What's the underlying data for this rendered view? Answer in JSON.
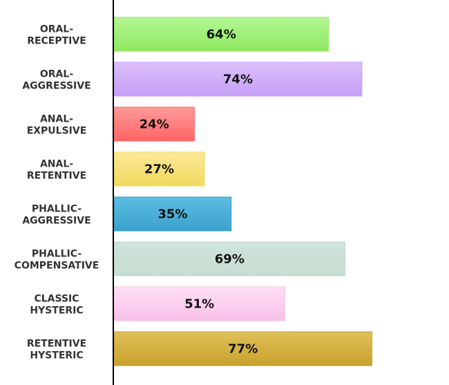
{
  "chart_data": {
    "type": "bar",
    "orientation": "horizontal",
    "categories": [
      [
        "ORAL-",
        "RECEPTIVE"
      ],
      [
        "ORAL-",
        "AGGRESSIVE"
      ],
      [
        "ANAL-",
        "EXPULSIVE"
      ],
      [
        "ANAL-",
        "RETENTIVE"
      ],
      [
        "PHALLIC-",
        "AGGRESSIVE"
      ],
      [
        "PHALLIC-",
        "COMPENSATIVE"
      ],
      [
        "CLASSIC",
        "HYSTERIC"
      ],
      [
        "RETENTIVE",
        "HYSTERIC"
      ]
    ],
    "values": [
      64,
      74,
      24,
      27,
      35,
      69,
      51,
      77
    ],
    "value_labels": [
      "64%",
      "74%",
      "24%",
      "27%",
      "35%",
      "69%",
      "51%",
      "77%"
    ],
    "colors": [
      [
        "#b3f796",
        "#8fe85f"
      ],
      [
        "#dcc0fb",
        "#c49ff5"
      ],
      [
        "#ff9a9a",
        "#ff6464"
      ],
      [
        "#fbe89a",
        "#f2d95d"
      ],
      [
        "#5cbde2",
        "#3ba1cc"
      ],
      [
        "#cfe4da",
        "#c6ddd2"
      ],
      [
        "#ffe0f6",
        "#f8c0e8"
      ],
      [
        "#e0c05a",
        "#c9a22c"
      ]
    ],
    "xlim": [
      0,
      100
    ],
    "grid": false,
    "legend": "none"
  }
}
